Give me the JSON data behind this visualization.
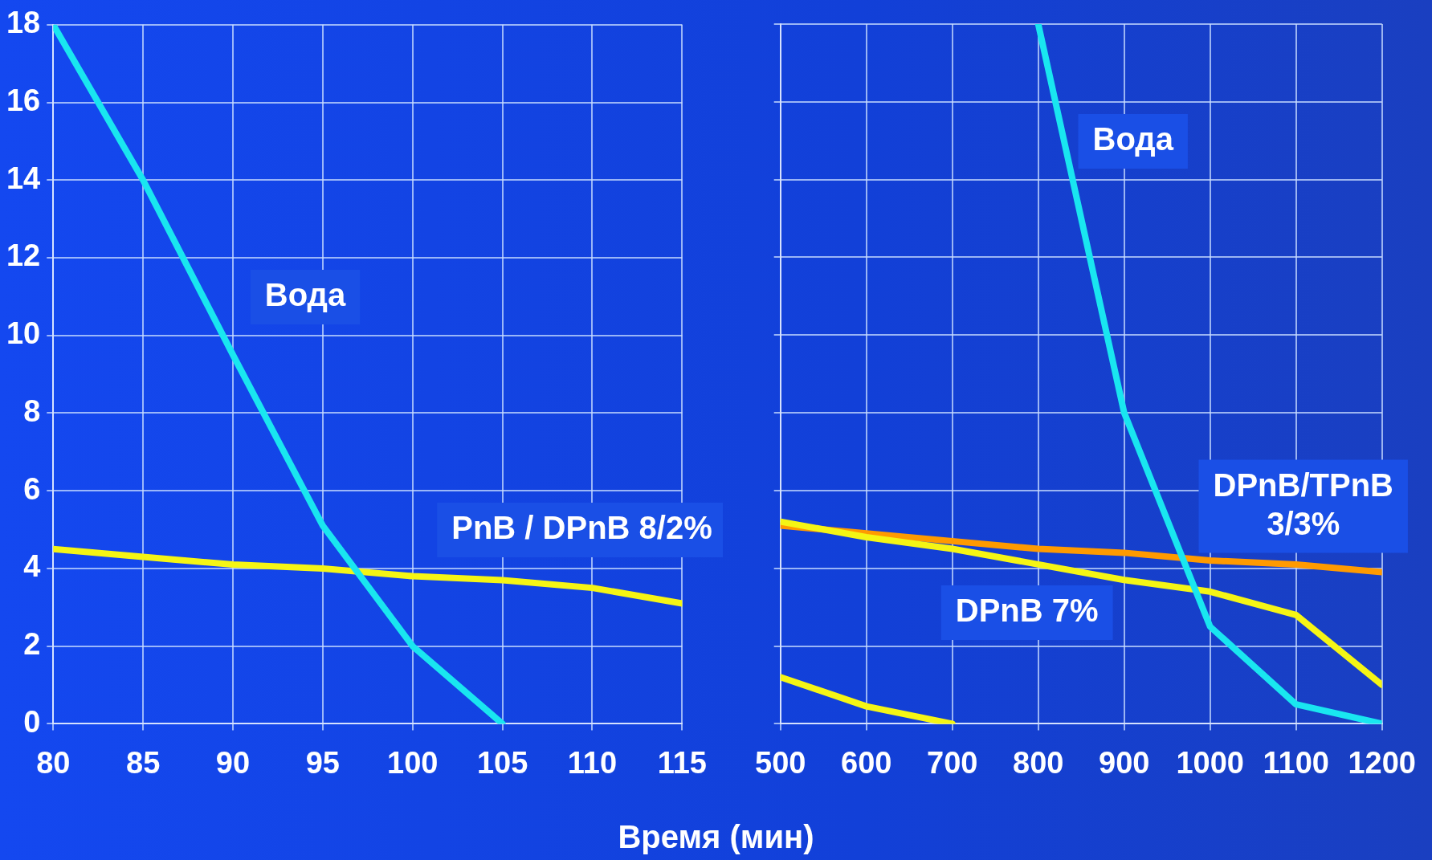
{
  "chart_data": [
    {
      "type": "line",
      "xlabel": "Время (мин)",
      "x": [
        80,
        85,
        90,
        95,
        100,
        105,
        110,
        115
      ],
      "xlim": [
        80,
        115
      ],
      "xticks": [
        80,
        85,
        90,
        95,
        100,
        105,
        110,
        115
      ],
      "ylim": [
        0,
        18
      ],
      "yticks": [
        0,
        2,
        4,
        6,
        8,
        10,
        12,
        14,
        16,
        18
      ],
      "grid": true,
      "legend": false,
      "series": [
        {
          "name": "Вода",
          "color": "#19e6f0",
          "values": [
            18,
            14,
            9.5,
            5.1,
            2,
            0,
            null,
            null
          ]
        },
        {
          "name": "PnB / DPnB 8/2%",
          "color": "#f5f514",
          "values": [
            4.5,
            4.3,
            4.1,
            4.0,
            3.8,
            3.7,
            3.5,
            3.1
          ]
        }
      ]
    },
    {
      "type": "line",
      "x": [
        500,
        600,
        700,
        800,
        900,
        1000,
        1100,
        1200
      ],
      "xlim": [
        500,
        1200
      ],
      "xticks": [
        500,
        600,
        700,
        800,
        900,
        1000,
        1100,
        1200
      ],
      "ylim": [
        0,
        18
      ],
      "yticks": [
        0,
        2,
        4,
        6,
        8,
        10,
        12,
        14,
        16,
        18
      ],
      "tick_labels": "x",
      "grid": true,
      "legend": false,
      "series": [
        {
          "name": "Вода",
          "color": "#19e6f0",
          "values": [
            null,
            null,
            null,
            18,
            8,
            2.5,
            0.5,
            0
          ]
        },
        {
          "name": "DPnB 7%",
          "color": "#f5f514",
          "values": [
            5.2,
            4.8,
            4.5,
            4.1,
            3.7,
            3.4,
            2.8,
            1.0
          ]
        },
        {
          "name": "DPnB/TPnB\n3/3%",
          "color": "#ff9a00",
          "values": [
            5.1,
            4.9,
            4.7,
            4.5,
            4.4,
            4.2,
            4.1,
            3.9
          ]
        },
        {
          "color": "#f5f514",
          "values": [
            1.2,
            0.45,
            0,
            null,
            null,
            null,
            null,
            null
          ]
        }
      ]
    }
  ]
}
